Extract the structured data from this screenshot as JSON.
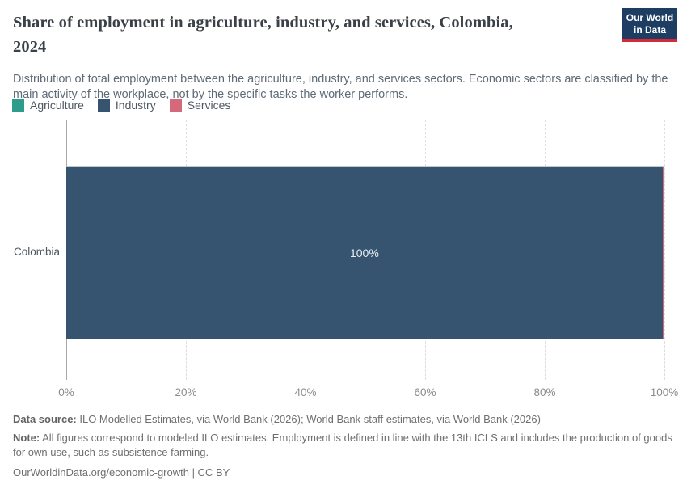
{
  "header": {
    "title_line1": "Share of employment in agriculture, industry, and services, Colombia,",
    "title_line2": "2024",
    "subtitle": "Distribution of total employment between the agriculture, industry, and services sectors. Economic sectors are classified by the main activity of the workplace, not by the specific tasks the worker performs.",
    "logo": {
      "line1": "Our World",
      "line2": "in Data",
      "bg": "#1d3d63",
      "accent": "#d42b38"
    }
  },
  "chart_data": {
    "type": "bar",
    "orientation": "horizontal-stacked",
    "title": "Share of employment in agriculture, industry, and services, Colombia, 2024",
    "categories": [
      "Colombia"
    ],
    "series": [
      {
        "name": "Agriculture",
        "value": 0,
        "color": "#2e9c8a",
        "label": ""
      },
      {
        "name": "Industry",
        "value": 99.7,
        "color": "#36536f",
        "label": "100%"
      },
      {
        "name": "Services",
        "value": 0.3,
        "color": "#d4697c",
        "label": ""
      }
    ],
    "xlim": [
      0,
      100
    ],
    "xticks": [
      "0%",
      "20%",
      "40%",
      "60%",
      "80%",
      "100%"
    ],
    "grid": "dashed-vertical",
    "legend_position": "top-left"
  },
  "footer": {
    "datasource_label": "Data source:",
    "datasource_text": " ILO Modelled Estimates, via World Bank (2026); World Bank staff estimates, via World Bank (2026)",
    "note_label": "Note:",
    "note_text": " All figures correspond to modeled ILO estimates. Employment is defined in line with the 13th ICLS and includes the production of goods for own use, such as subsistence farming.",
    "url": "OurWorldinData.org/economic-growth | CC BY"
  }
}
